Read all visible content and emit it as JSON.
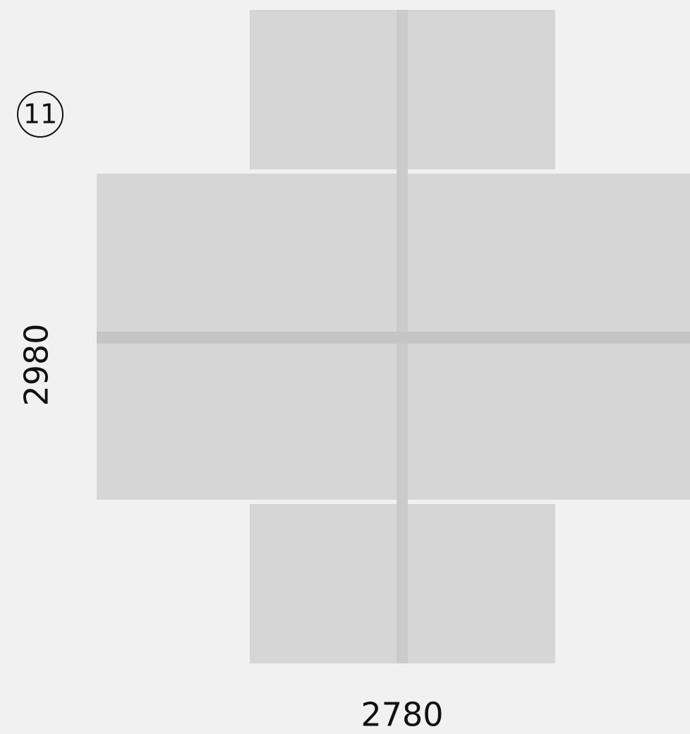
{
  "label": "11",
  "dimensions": {
    "height": "2980",
    "width": "2780"
  }
}
